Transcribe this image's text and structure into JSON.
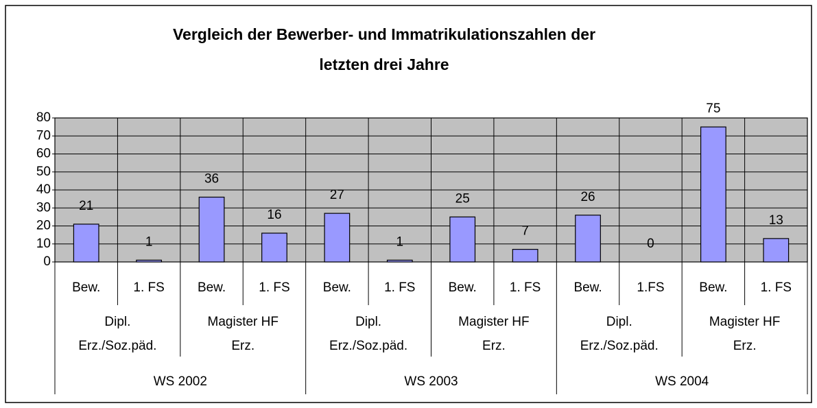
{
  "chart_data": {
    "type": "bar",
    "title": [
      "Vergleich der Bewerber- und Immatrikulationszahlen der",
      "letzten drei Jahre"
    ],
    "categories": [
      "Bew.",
      "1. FS",
      "Bew.",
      "1. FS",
      "Bew.",
      "1. FS",
      "Bew.",
      "1. FS",
      "Bew.",
      "1.FS",
      "Bew.",
      "1. FS"
    ],
    "groups": [
      [
        "Dipl.",
        "Erz./Soz.päd."
      ],
      [
        "Magister HF",
        "Erz."
      ],
      [
        "Dipl.",
        "Erz./Soz.päd."
      ],
      [
        "Magister HF",
        "Erz."
      ],
      [
        "Dipl.",
        "Erz./Soz.päd."
      ],
      [
        "Magister HF",
        "Erz."
      ]
    ],
    "supergroups": [
      "WS 2002",
      "WS 2003",
      "WS 2004"
    ],
    "values": [
      21,
      1,
      36,
      16,
      27,
      1,
      25,
      7,
      26,
      0,
      75,
      13
    ],
    "color": "#9999ff",
    "ylim": [
      0,
      80
    ],
    "yticks": [
      0,
      10,
      20,
      30,
      40,
      50,
      60,
      70,
      80
    ],
    "grid": true
  }
}
